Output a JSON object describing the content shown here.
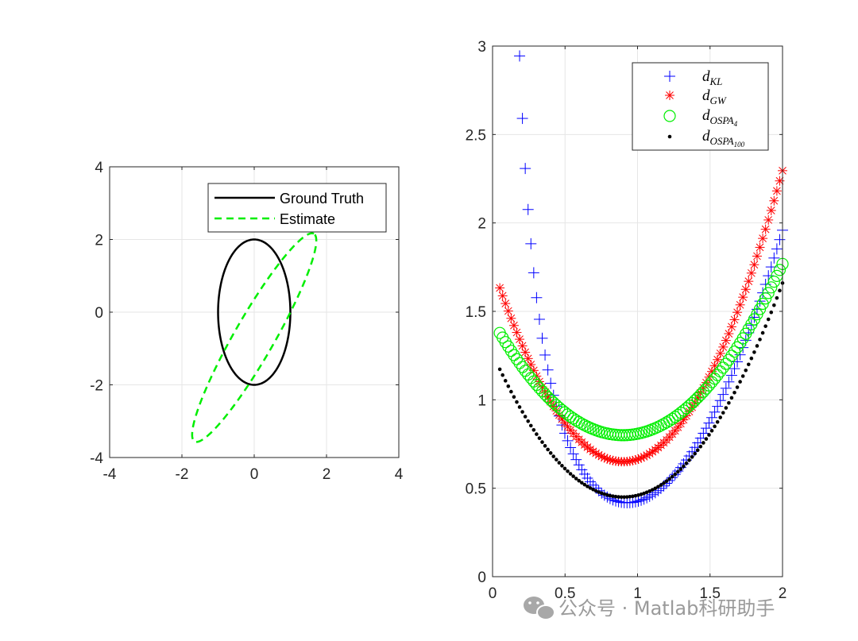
{
  "chart_data": [
    {
      "type": "line",
      "title": "",
      "xlabel": "",
      "ylabel": "",
      "xlim": [
        -4,
        4
      ],
      "ylim": [
        -4,
        4
      ],
      "xticks": [
        "-4",
        "-2",
        "0",
        "2",
        "4"
      ],
      "yticks": [
        "-4",
        "-2",
        "0",
        "2",
        "4"
      ],
      "grid": true,
      "legend_position": "top-right",
      "series": [
        {
          "name": "Ground Truth",
          "color": "#000000",
          "style": "solid",
          "ellipse": {
            "center": [
              0,
              0
            ],
            "semi_x": 1,
            "semi_y": 2,
            "angle_deg": 0
          }
        },
        {
          "name": "Estimate",
          "color": "#00ee00",
          "style": "dashed",
          "ellipse": {
            "center": [
              0,
              -0.7
            ],
            "semi_major": 3.3,
            "semi_minor": 0.55,
            "angle_deg": 60
          }
        }
      ]
    },
    {
      "type": "scatter",
      "title": "",
      "xlabel": "",
      "ylabel": "",
      "xlim": [
        0,
        2
      ],
      "ylim": [
        0,
        3
      ],
      "xticks": [
        "0",
        "0.5",
        "1",
        "1.5",
        "2"
      ],
      "yticks": [
        "0",
        "0.5",
        "1",
        "1.5",
        "2",
        "2.5",
        "3"
      ],
      "grid": true,
      "legend_position": "top-right",
      "x_range": [
        0.05,
        2.0
      ],
      "x_step": 0.0195,
      "series": [
        {
          "name": "d",
          "sub": "KL",
          "marker": "plus",
          "color": "#0000ff",
          "model": "0.18 + 1.15*(x-0.78)^2 + 0.19/x^1.5"
        },
        {
          "name": "d",
          "sub": "GW",
          "marker": "star",
          "color": "#ff0000",
          "model": "0.65 + 1.36*(x-0.9)^2"
        },
        {
          "name": "d",
          "sub": "OSPA",
          "subsub": "4",
          "marker": "circle",
          "color": "#00ee00",
          "model": "0.8 + 0.8*(x-0.9)^2"
        },
        {
          "name": "d",
          "sub": "OSPA",
          "subsub": "100",
          "marker": "dot",
          "color": "#000000",
          "model": "0.45 + 1.0*(x-0.9)^2"
        }
      ]
    }
  ],
  "watermark": {
    "text": "公众号 · Matlab科研助手",
    "icon": "wechat-icon"
  }
}
